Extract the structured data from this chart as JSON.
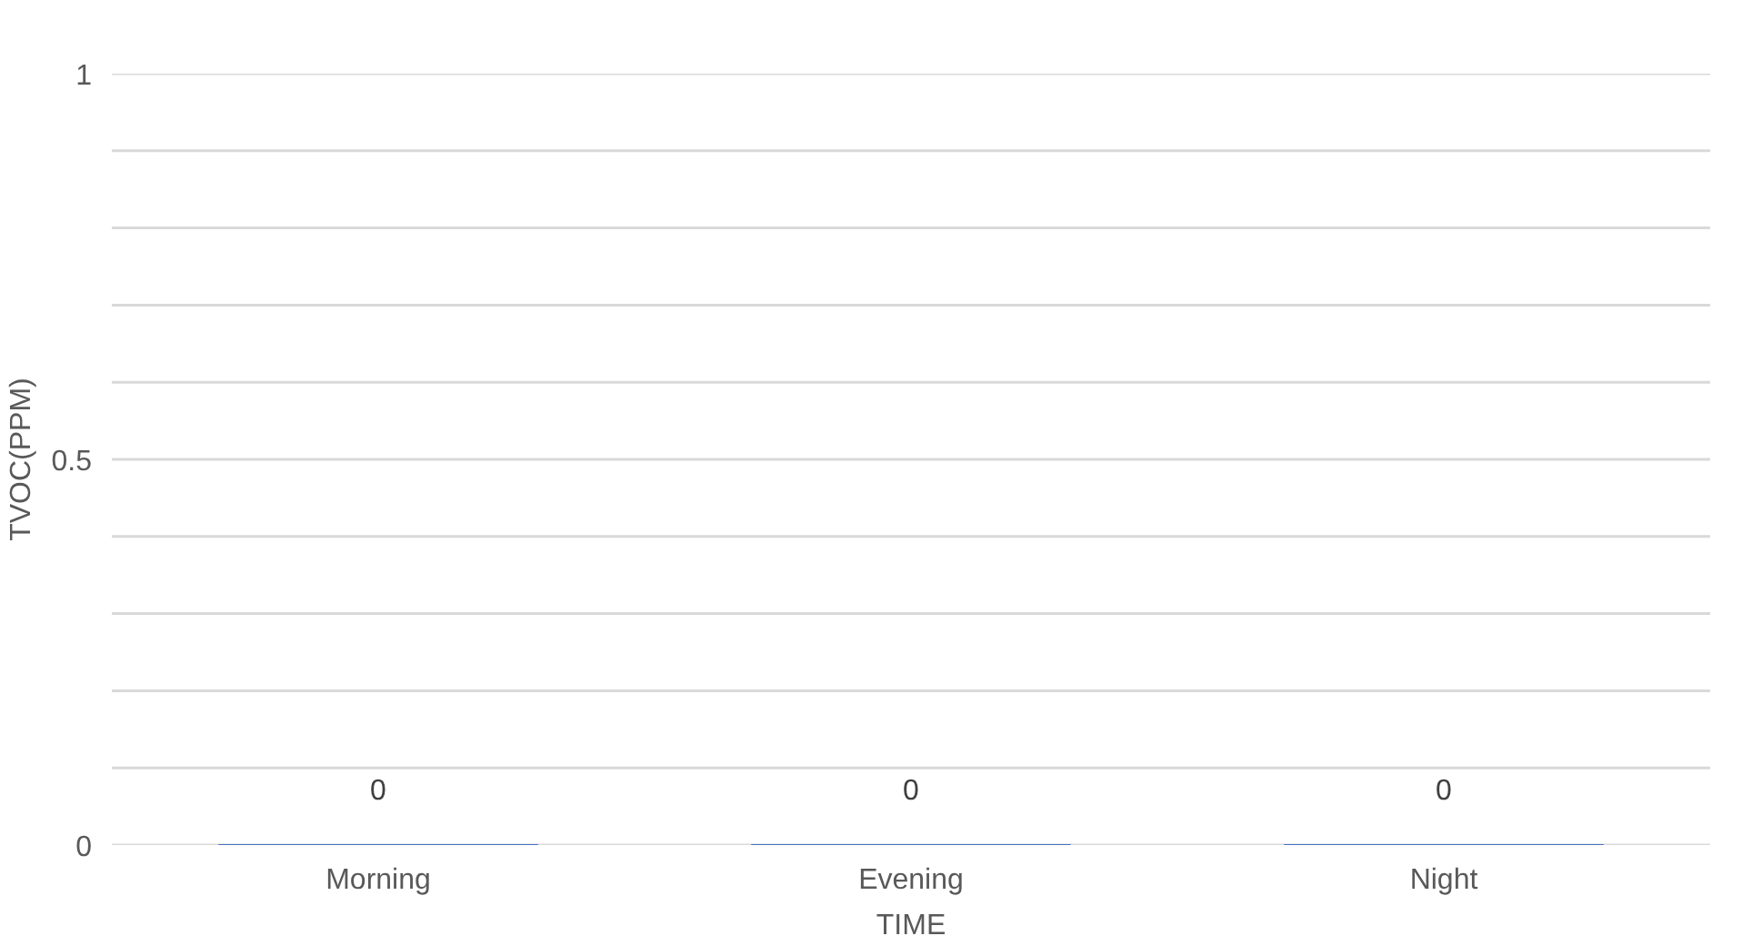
{
  "chart_data": {
    "type": "bar",
    "xlabel": "TIME",
    "ylabel": "TVOC(PPM)",
    "categories": [
      "Morning",
      "Evening",
      "Night"
    ],
    "values": [
      0,
      0,
      0
    ],
    "color": "#4472c4",
    "ylim": [
      0,
      1
    ],
    "yticks": [
      0,
      {
        "value": 0.1,
        "label": null
      },
      {
        "value": 0.2,
        "label": null
      },
      {
        "value": 0.3,
        "label": null
      },
      {
        "value": 0.4,
        "label": null
      },
      0.5,
      {
        "value": 0.6,
        "label": null
      },
      {
        "value": 0.7,
        "label": null
      },
      {
        "value": 0.8,
        "label": null
      },
      {
        "value": 0.9,
        "label": null
      },
      1
    ],
    "grid": "y",
    "data_labels": true
  }
}
